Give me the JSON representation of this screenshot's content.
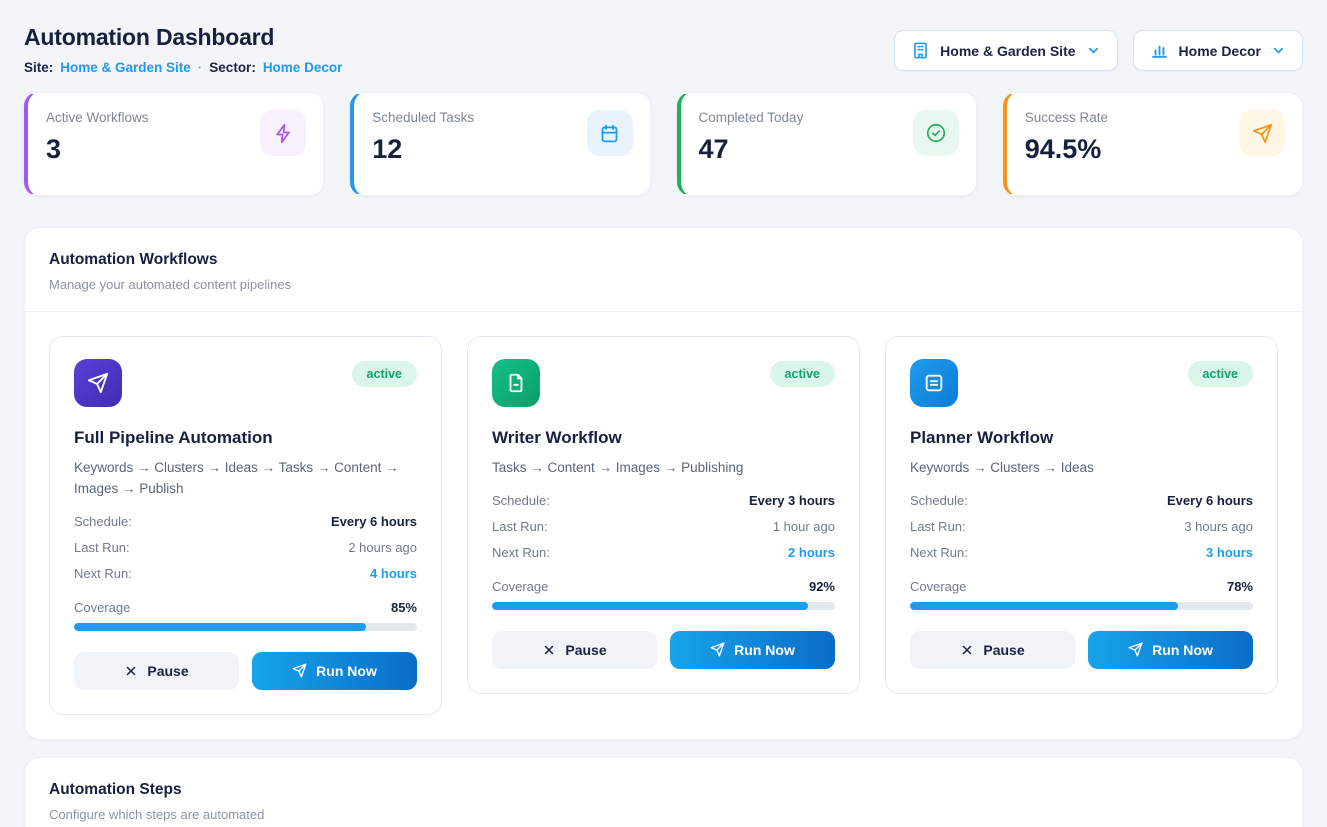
{
  "page": {
    "title": "Automation Dashboard",
    "site_label": "Site:",
    "site_value": "Home & Garden Site",
    "separator": "·",
    "sector_label": "Sector:",
    "sector_value": "Home Decor"
  },
  "header_controls": {
    "site_selector": {
      "label": "Home & Garden Site",
      "icon": "building-icon"
    },
    "sector_selector": {
      "label": "Home Decor",
      "icon": "bar-chart-icon"
    }
  },
  "colors": {
    "accent_blue": "#1d9bf0",
    "navy_text": "#17203f",
    "active_badge_bg": "#d9f6e8",
    "active_badge_text": "#12a06b",
    "run_gradient": [
      "#17a3ea",
      "#0a6dc8"
    ],
    "page_bg": "#f3f5f9"
  },
  "stats": [
    {
      "label": "Active Workflows",
      "value": "3",
      "icon": "lightning-icon",
      "accent": "#a855f7",
      "icon_bg": "#f8f0fd",
      "icon_color": "#a855f7"
    },
    {
      "label": "Scheduled Tasks",
      "value": "12",
      "icon": "calendar-icon",
      "accent": "#1d9bf0",
      "icon_bg": "#e9f3fd",
      "icon_color": "#1d9bf0"
    },
    {
      "label": "Completed Today",
      "value": "47",
      "icon": "check-circle-icon",
      "accent": "#1fb15c",
      "icon_bg": "#e8f8ef",
      "icon_color": "#22ad5c"
    },
    {
      "label": "Success Rate",
      "value": "94.5%",
      "icon": "send-icon",
      "accent": "#f7941d",
      "icon_bg": "#fdf7e3",
      "icon_color": "#f7941d"
    }
  ],
  "workflows_section": {
    "title": "Automation Workflows",
    "subtitle": "Manage your automated content pipelines",
    "cards": [
      {
        "name": "Full Pipeline Automation",
        "pipeline": "Keywords → Clusters → Ideas → Tasks → Content → Images → Publish",
        "status": "active",
        "icon": "send-icon",
        "icon_gradient": [
          "#5a41d8",
          "#3f2cb2"
        ],
        "schedule_label": "Schedule:",
        "schedule": "Every 6 hours",
        "last_run_label": "Last Run:",
        "last_run": "2 hours ago",
        "next_run_label": "Next Run:",
        "next_run": "4 hours",
        "coverage_label": "Coverage",
        "coverage": "85%",
        "coverage_pct": 85,
        "pause_label": "Pause",
        "run_label": "Run Now"
      },
      {
        "name": "Writer Workflow",
        "pipeline": "Tasks → Content → Images → Publishing",
        "status": "active",
        "icon": "file-text-icon",
        "icon_gradient": [
          "#15c08a",
          "#0a9e66"
        ],
        "schedule_label": "Schedule:",
        "schedule": "Every 3 hours",
        "last_run_label": "Last Run:",
        "last_run": "1 hour ago",
        "next_run_label": "Next Run:",
        "next_run": "2 hours",
        "coverage_label": "Coverage",
        "coverage": "92%",
        "coverage_pct": 92,
        "pause_label": "Pause",
        "run_label": "Run Now"
      },
      {
        "name": "Planner Workflow",
        "pipeline": "Keywords → Clusters → Ideas",
        "status": "active",
        "icon": "list-square-icon",
        "icon_gradient": [
          "#1d9bf0",
          "#0b7dd4"
        ],
        "schedule_label": "Schedule:",
        "schedule": "Every 6 hours",
        "last_run_label": "Last Run:",
        "last_run": "3 hours ago",
        "next_run_label": "Next Run:",
        "next_run": "3 hours",
        "coverage_label": "Coverage",
        "coverage": "78%",
        "coverage_pct": 78,
        "pause_label": "Pause",
        "run_label": "Run Now"
      }
    ]
  },
  "steps_section": {
    "title": "Automation Steps",
    "subtitle": "Configure which steps are automated"
  }
}
